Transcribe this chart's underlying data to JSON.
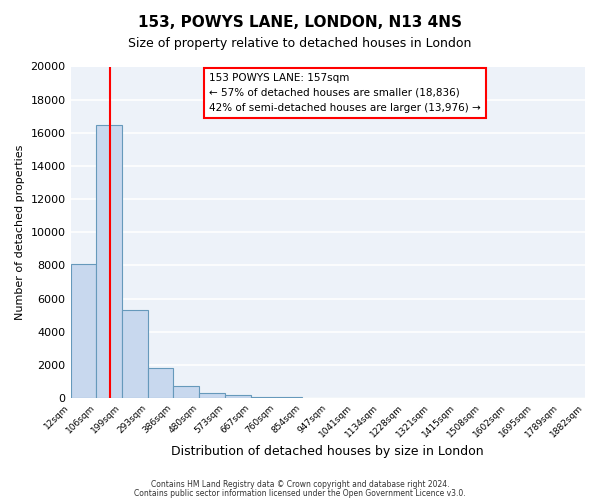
{
  "title": "153, POWYS LANE, LONDON, N13 4NS",
  "subtitle": "Size of property relative to detached houses in London",
  "xlabel": "Distribution of detached houses by size in London",
  "ylabel": "Number of detached properties",
  "bar_values": [
    8100,
    16500,
    5300,
    1800,
    750,
    280,
    150,
    80,
    50,
    0,
    0,
    0,
    0,
    0,
    0,
    0,
    0,
    0,
    0,
    0
  ],
  "bar_labels": [
    "12sqm",
    "106sqm",
    "199sqm",
    "293sqm",
    "386sqm",
    "480sqm",
    "573sqm",
    "667sqm",
    "760sqm",
    "854sqm",
    "947sqm",
    "1041sqm",
    "1134sqm",
    "1228sqm",
    "1321sqm",
    "1415sqm",
    "1508sqm",
    "1602sqm",
    "1695sqm",
    "1789sqm",
    "1882sqm"
  ],
  "bar_color": "#c8d8ee",
  "bar_edge_color": "#6699bb",
  "red_line_x": 1.52,
  "annotation_text_line1": "153 POWYS LANE: 157sqm",
  "annotation_text_line2": "← 57% of detached houses are smaller (18,836)",
  "annotation_text_line3": "42% of semi-detached houses are larger (13,976) →",
  "ylim": [
    0,
    20000
  ],
  "yticks": [
    0,
    2000,
    4000,
    6000,
    8000,
    10000,
    12000,
    14000,
    16000,
    18000,
    20000
  ],
  "footer_line1": "Contains HM Land Registry data © Crown copyright and database right 2024.",
  "footer_line2": "Contains public sector information licensed under the Open Government Licence v3.0.",
  "background_color": "#edf2f9",
  "grid_color": "#ffffff",
  "fig_bg_color": "#ffffff"
}
